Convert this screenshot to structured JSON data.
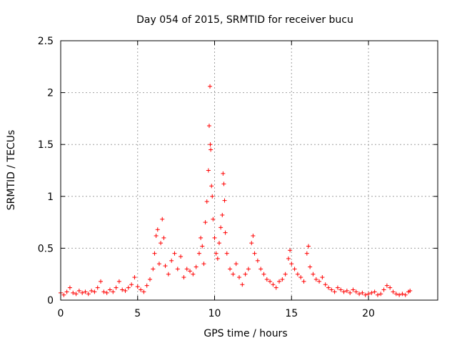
{
  "chart_data": {
    "type": "scatter",
    "title": "Day 054 of 2015, SRMTID for receiver bucu",
    "xlabel": "GPS time / hours",
    "ylabel": "SRMTID / TECUs",
    "xlim": [
      0,
      24.5
    ],
    "ylim": [
      0,
      2.5
    ],
    "xticks": [
      0,
      5,
      10,
      15,
      20
    ],
    "xtick_labels": [
      "0",
      "5",
      "10",
      "15",
      "20"
    ],
    "yticks": [
      0,
      0.5,
      1,
      1.5,
      2,
      2.5
    ],
    "ytick_labels": [
      "0",
      "0.5",
      "1",
      "1.5",
      "2",
      "2.5"
    ],
    "grid": true,
    "marker": "+",
    "color": "#ff0000",
    "series": [
      {
        "name": "SRMTID",
        "x": [
          0.0,
          0.2,
          0.4,
          0.6,
          0.8,
          1.0,
          1.2,
          1.4,
          1.6,
          1.8,
          2.0,
          2.2,
          2.4,
          2.6,
          2.8,
          3.0,
          3.2,
          3.4,
          3.6,
          3.8,
          4.0,
          4.2,
          4.4,
          4.6,
          4.8,
          5.0,
          5.2,
          5.4,
          5.6,
          5.8,
          6.0,
          6.1,
          6.2,
          6.3,
          6.4,
          6.5,
          6.6,
          6.7,
          6.8,
          7.0,
          7.2,
          7.4,
          7.6,
          7.8,
          8.0,
          8.2,
          8.4,
          8.6,
          8.8,
          9.0,
          9.1,
          9.2,
          9.3,
          9.4,
          9.5,
          9.6,
          9.65,
          9.7,
          9.72,
          9.75,
          9.8,
          9.85,
          9.9,
          10.0,
          10.1,
          10.2,
          10.3,
          10.4,
          10.5,
          10.55,
          10.6,
          10.65,
          10.7,
          10.8,
          11.0,
          11.2,
          11.4,
          11.6,
          11.8,
          12.0,
          12.2,
          12.4,
          12.5,
          12.6,
          12.8,
          13.0,
          13.2,
          13.4,
          13.6,
          13.8,
          14.0,
          14.2,
          14.4,
          14.6,
          14.8,
          14.9,
          15.0,
          15.2,
          15.4,
          15.6,
          15.8,
          16.0,
          16.1,
          16.2,
          16.4,
          16.6,
          16.8,
          17.0,
          17.2,
          17.4,
          17.6,
          17.8,
          18.0,
          18.2,
          18.4,
          18.6,
          18.8,
          19.0,
          19.2,
          19.4,
          19.6,
          19.8,
          20.0,
          20.2,
          20.4,
          20.6,
          20.8,
          21.0,
          21.2,
          21.4,
          21.6,
          21.8,
          22.0,
          22.2,
          22.4,
          22.6,
          22.7
        ],
        "y": [
          0.07,
          0.05,
          0.08,
          0.12,
          0.07,
          0.06,
          0.09,
          0.07,
          0.08,
          0.06,
          0.09,
          0.08,
          0.12,
          0.18,
          0.08,
          0.07,
          0.1,
          0.08,
          0.12,
          0.18,
          0.1,
          0.09,
          0.12,
          0.15,
          0.22,
          0.13,
          0.1,
          0.08,
          0.14,
          0.2,
          0.3,
          0.45,
          0.62,
          0.68,
          0.35,
          0.55,
          0.78,
          0.6,
          0.33,
          0.25,
          0.38,
          0.45,
          0.3,
          0.42,
          0.22,
          0.3,
          0.28,
          0.25,
          0.32,
          0.45,
          0.6,
          0.52,
          0.35,
          0.75,
          0.95,
          1.25,
          1.68,
          2.06,
          1.5,
          1.45,
          1.1,
          1.0,
          0.78,
          0.6,
          0.45,
          0.4,
          0.55,
          0.7,
          0.82,
          1.22,
          1.12,
          0.96,
          0.65,
          0.45,
          0.3,
          0.25,
          0.35,
          0.22,
          0.15,
          0.25,
          0.3,
          0.55,
          0.62,
          0.45,
          0.38,
          0.3,
          0.25,
          0.2,
          0.18,
          0.15,
          0.12,
          0.18,
          0.2,
          0.25,
          0.4,
          0.48,
          0.35,
          0.3,
          0.25,
          0.22,
          0.18,
          0.45,
          0.52,
          0.32,
          0.25,
          0.2,
          0.18,
          0.22,
          0.15,
          0.12,
          0.1,
          0.08,
          0.12,
          0.1,
          0.08,
          0.09,
          0.07,
          0.1,
          0.08,
          0.06,
          0.07,
          0.05,
          0.06,
          0.07,
          0.08,
          0.05,
          0.06,
          0.1,
          0.14,
          0.12,
          0.08,
          0.06,
          0.05,
          0.06,
          0.05,
          0.08,
          0.09
        ]
      }
    ]
  }
}
